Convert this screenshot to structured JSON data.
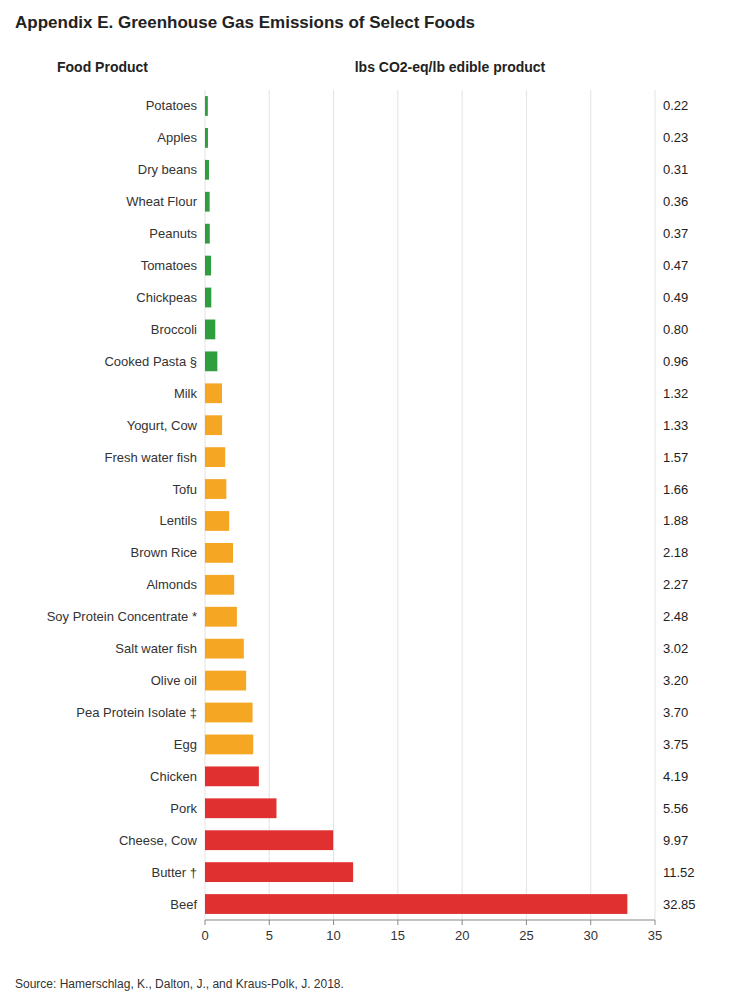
{
  "chart_data": {
    "type": "bar",
    "orientation": "horizontal",
    "title": "Appendix E. Greenhouse Gas Emissions of Select Foods",
    "ylabel": "Food Product",
    "xlabel": "lbs CO2-eq/lb edible product",
    "annotations": [
      "Source: Hamerschlag, K., Dalton, J., and Kraus-Polk, J. 2018."
    ],
    "categories": [
      "Potatoes",
      "Apples",
      "Dry beans",
      "Wheat Flour",
      "Peanuts",
      "Tomatoes",
      "Chickpeas",
      "Broccoli",
      "Cooked Pasta §",
      "Milk",
      "Yogurt, Cow",
      "Fresh water fish",
      "Tofu",
      "Lentils",
      "Brown Rice",
      "Almonds",
      "Soy Protein Concentrate *",
      "Salt water fish",
      "Olive oil",
      "Pea Protein Isolate ‡",
      "Egg",
      "Chicken",
      "Pork",
      "Cheese, Cow",
      "Butter †",
      "Beef"
    ],
    "values": [
      0.22,
      0.23,
      0.31,
      0.36,
      0.37,
      0.47,
      0.49,
      0.8,
      0.96,
      1.32,
      1.33,
      1.57,
      1.66,
      1.88,
      2.18,
      2.27,
      2.48,
      3.02,
      3.2,
      3.7,
      3.75,
      4.19,
      5.56,
      9.97,
      11.52,
      32.85
    ],
    "value_labels": [
      "0.22",
      "0.23",
      "0.31",
      "0.36",
      "0.37",
      "0.47",
      "0.49",
      "0.80",
      "0.96",
      "1.32",
      "1.33",
      "1.57",
      "1.66",
      "1.88",
      "2.18",
      "2.27",
      "2.48",
      "3.02",
      "3.20",
      "3.70",
      "3.75",
      "4.19",
      "5.56",
      "9.97",
      "11.52",
      "32.85"
    ],
    "data_labels": true,
    "colors": [
      "#2e9e3e",
      "#2e9e3e",
      "#2e9e3e",
      "#2e9e3e",
      "#2e9e3e",
      "#2e9e3e",
      "#2e9e3e",
      "#2e9e3e",
      "#2e9e3e",
      "#f5a623",
      "#f5a623",
      "#f5a623",
      "#f5a623",
      "#f5a623",
      "#f5a623",
      "#f5a623",
      "#f5a623",
      "#f5a623",
      "#f5a623",
      "#f5a623",
      "#f5a623",
      "#e03030",
      "#e03030",
      "#e03030",
      "#e03030",
      "#e03030"
    ],
    "xlim": [
      0,
      35
    ],
    "xticks": [
      0,
      5,
      10,
      15,
      20,
      25,
      30,
      35
    ],
    "grid": true
  }
}
